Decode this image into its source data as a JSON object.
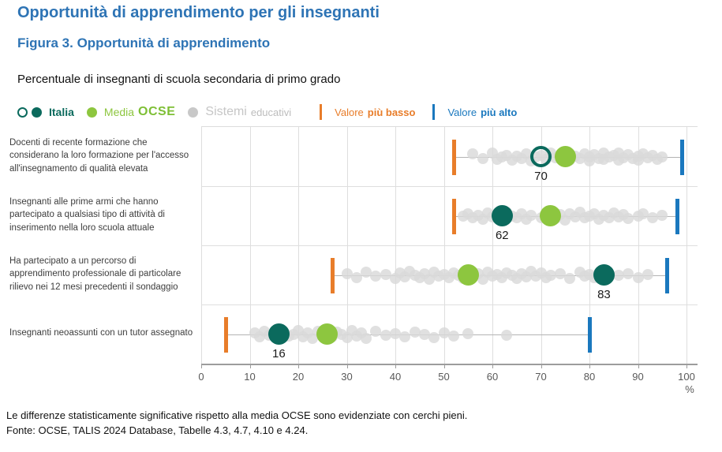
{
  "page": {
    "title": "Opportunità di apprendimento per gli insegnanti",
    "figure_title": "Figura 3. Opportunità di apprendimento",
    "subtitle": "Percentuale di insegnanti di scuola secondaria di primo grado"
  },
  "colors": {
    "title_blue": "#2e74b5",
    "italia_teal": "#0b6a5d",
    "media_ocse_green": "#8dc63f",
    "sistemi_gray": "#d9d9d9",
    "valore_piu_basso_orange": "#e87d2a",
    "valore_piu_alto_blue": "#1a78be"
  },
  "legend": {
    "italia_label": "Italia",
    "media_label": "Media",
    "ocse_label": "OCSE",
    "sistemi_label": "Sistemi",
    "educativi_label": "educativi",
    "lowest_prefix": "Valore",
    "lowest_bold": "più basso",
    "highest_prefix": "Valore",
    "highest_bold": "più alto"
  },
  "chart_data": {
    "type": "scatter",
    "variant": "dot-strip-dumbbell",
    "xlabel": "%",
    "xlim": [
      0,
      100
    ],
    "xticks": [
      0,
      10,
      20,
      30,
      40,
      50,
      60,
      70,
      80,
      90,
      100
    ],
    "percent_label": "%",
    "legend_series": [
      "Italia",
      "Media OCSE",
      "Sistemi educativi",
      "Valore più basso",
      "Valore più alto"
    ],
    "rows": [
      {
        "label": "Docenti di recente formazione che considerano la loro formazione per l'accesso all'insegnamento di qualità elevata",
        "italia": {
          "value": 70,
          "filled": false,
          "label": "70"
        },
        "media_ocse": 75,
        "valore_piu_basso": 52,
        "valore_piu_alto": 99,
        "sistemi": [
          [
            56,
            -4
          ],
          [
            58,
            2
          ],
          [
            60,
            -5
          ],
          [
            61,
            3
          ],
          [
            62,
            0
          ],
          [
            63,
            -2
          ],
          [
            64,
            4
          ],
          [
            65,
            -1
          ],
          [
            66,
            2
          ],
          [
            67,
            -4
          ],
          [
            68,
            5
          ],
          [
            69,
            0
          ],
          [
            70,
            -2
          ],
          [
            71,
            3
          ],
          [
            72,
            -5
          ],
          [
            73,
            1
          ],
          [
            74,
            -3
          ],
          [
            76,
            4
          ],
          [
            77,
            -1
          ],
          [
            78,
            2
          ],
          [
            79,
            -4
          ],
          [
            80,
            0
          ],
          [
            80,
            5
          ],
          [
            81,
            -3
          ],
          [
            82,
            2
          ],
          [
            83,
            -5
          ],
          [
            83,
            3
          ],
          [
            84,
            0
          ],
          [
            85,
            -2
          ],
          [
            86,
            4
          ],
          [
            86,
            -5
          ],
          [
            87,
            1
          ],
          [
            88,
            -3
          ],
          [
            89,
            2
          ],
          [
            90,
            -1
          ],
          [
            90,
            4
          ],
          [
            91,
            -4
          ],
          [
            92,
            1
          ],
          [
            93,
            -2
          ],
          [
            94,
            3
          ],
          [
            95,
            0
          ]
        ]
      },
      {
        "label": "Insegnanti alle prime armi che hanno partecipato a qualsiasi tipo di attività di inserimento nella loro scuola attuale",
        "italia": {
          "value": 62,
          "filled": true,
          "label": "62"
        },
        "media_ocse": 72,
        "valore_piu_basso": 52,
        "valore_piu_alto": 98,
        "sistemi": [
          [
            54,
            0
          ],
          [
            55,
            -3
          ],
          [
            56,
            2
          ],
          [
            57,
            -1
          ],
          [
            58,
            4
          ],
          [
            59,
            -4
          ],
          [
            60,
            1
          ],
          [
            61,
            -2
          ],
          [
            62,
            3
          ],
          [
            63,
            -5
          ],
          [
            64,
            0
          ],
          [
            65,
            2
          ],
          [
            66,
            -3
          ],
          [
            67,
            4
          ],
          [
            68,
            -1
          ],
          [
            70,
            2
          ],
          [
            71,
            -4
          ],
          [
            72,
            0
          ],
          [
            73,
            3
          ],
          [
            74,
            -2
          ],
          [
            75,
            5
          ],
          [
            76,
            -3
          ],
          [
            77,
            1
          ],
          [
            78,
            -5
          ],
          [
            79,
            2
          ],
          [
            80,
            0
          ],
          [
            81,
            -3
          ],
          [
            82,
            4
          ],
          [
            83,
            -1
          ],
          [
            84,
            2
          ],
          [
            85,
            -4
          ],
          [
            86,
            1
          ],
          [
            87,
            -2
          ],
          [
            88,
            3
          ],
          [
            90,
            0
          ],
          [
            91,
            -3
          ],
          [
            93,
            2
          ],
          [
            95,
            -1
          ]
        ]
      },
      {
        "label": "Ha partecipato a un percorso di apprendimento professionale di particolare rilievo nei 12 mesi precedenti il sondaggio",
        "italia": {
          "value": 83,
          "filled": true,
          "label": "83"
        },
        "media_ocse": 55,
        "valore_piu_basso": 27,
        "valore_piu_alto": 96,
        "sistemi": [
          [
            30,
            -2
          ],
          [
            32,
            3
          ],
          [
            34,
            -4
          ],
          [
            36,
            1
          ],
          [
            38,
            -1
          ],
          [
            40,
            4
          ],
          [
            41,
            -3
          ],
          [
            42,
            2
          ],
          [
            43,
            -5
          ],
          [
            44,
            0
          ],
          [
            45,
            3
          ],
          [
            46,
            -2
          ],
          [
            47,
            5
          ],
          [
            48,
            -4
          ],
          [
            49,
            1
          ],
          [
            50,
            -1
          ],
          [
            51,
            3
          ],
          [
            52,
            -3
          ],
          [
            53,
            0
          ],
          [
            54,
            4
          ],
          [
            55,
            -5
          ],
          [
            56,
            2
          ],
          [
            57,
            -2
          ],
          [
            58,
            5
          ],
          [
            59,
            -4
          ],
          [
            60,
            1
          ],
          [
            61,
            -1
          ],
          [
            62,
            3
          ],
          [
            63,
            -3
          ],
          [
            64,
            0
          ],
          [
            65,
            4
          ],
          [
            66,
            -2
          ],
          [
            67,
            2
          ],
          [
            68,
            -5
          ],
          [
            69,
            1
          ],
          [
            70,
            -3
          ],
          [
            71,
            3
          ],
          [
            72,
            0
          ],
          [
            74,
            -2
          ],
          [
            76,
            4
          ],
          [
            78,
            -4
          ],
          [
            79,
            1
          ],
          [
            80,
            -1
          ],
          [
            81,
            3
          ],
          [
            82,
            -3
          ],
          [
            84,
            2
          ],
          [
            86,
            0
          ],
          [
            88,
            -2
          ],
          [
            90,
            3
          ],
          [
            92,
            -1
          ]
        ]
      },
      {
        "label": "Insegnanti neoassunti con un tutor assegnato",
        "italia": {
          "value": 16,
          "filled": true,
          "label": "16"
        },
        "media_ocse": 26,
        "valore_piu_basso": 5,
        "valore_piu_alto": 80,
        "sistemi": [
          [
            11,
            -2
          ],
          [
            12,
            3
          ],
          [
            13,
            -4
          ],
          [
            14,
            1
          ],
          [
            15,
            -1
          ],
          [
            16,
            4
          ],
          [
            17,
            -3
          ],
          [
            18,
            2
          ],
          [
            19,
            0
          ],
          [
            20,
            -5
          ],
          [
            21,
            3
          ],
          [
            22,
            -2
          ],
          [
            23,
            5
          ],
          [
            24,
            -4
          ],
          [
            25,
            1
          ],
          [
            26,
            -1
          ],
          [
            27,
            3
          ],
          [
            28,
            -3
          ],
          [
            29,
            0
          ],
          [
            30,
            4
          ],
          [
            31,
            -5
          ],
          [
            32,
            2
          ],
          [
            33,
            -2
          ],
          [
            34,
            5
          ],
          [
            36,
            -4
          ],
          [
            38,
            1
          ],
          [
            40,
            -1
          ],
          [
            42,
            3
          ],
          [
            44,
            -3
          ],
          [
            46,
            0
          ],
          [
            48,
            4
          ],
          [
            50,
            -2
          ],
          [
            52,
            2
          ],
          [
            55,
            -1
          ],
          [
            63,
            1
          ]
        ]
      }
    ]
  },
  "footer": {
    "note": "Le differenze statisticamente significative rispetto alla media OCSE sono evidenziate con cerchi pieni.",
    "source": "Fonte: OCSE, TALIS 2024 Database, Tabelle 4.3, 4.7, 4.10 e 4.24."
  }
}
